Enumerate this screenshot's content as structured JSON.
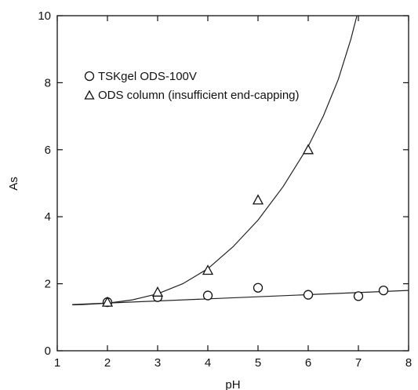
{
  "chart_data": {
    "type": "scatter",
    "xlabel": "pH",
    "ylabel": "As",
    "xlim": [
      1,
      8
    ],
    "ylim": [
      0,
      10
    ],
    "xticks": [
      1,
      2,
      3,
      4,
      5,
      6,
      7,
      8
    ],
    "yticks": [
      0,
      2,
      4,
      6,
      8,
      10
    ],
    "grid": false,
    "legend_position": "top-left",
    "series": [
      {
        "name": "TSKgel ODS-100V",
        "marker": "circle",
        "x": [
          2,
          3,
          4,
          5,
          6,
          7,
          7.5
        ],
        "y": [
          1.45,
          1.6,
          1.65,
          1.88,
          1.67,
          1.63,
          1.8
        ]
      },
      {
        "name": "ODS column (insufficient end-capping)",
        "marker": "triangle",
        "x": [
          2,
          3,
          4,
          5,
          6
        ],
        "y": [
          1.45,
          1.75,
          2.4,
          4.5,
          6.0
        ]
      }
    ],
    "trend_lines": [
      {
        "for": "TSKgel ODS-100V",
        "x": [
          1.3,
          8
        ],
        "y": [
          1.38,
          1.8
        ]
      },
      {
        "for": "ODS column (insufficient end-capping)",
        "x": [
          1.3,
          1.5,
          2,
          2.5,
          3,
          3.5,
          4,
          4.5,
          5,
          5.5,
          6,
          6.3,
          6.6,
          6.85,
          6.97
        ],
        "y": [
          1.37,
          1.38,
          1.42,
          1.52,
          1.7,
          2.0,
          2.45,
          3.1,
          3.9,
          4.9,
          6.1,
          7.0,
          8.1,
          9.3,
          10.0
        ]
      }
    ]
  }
}
